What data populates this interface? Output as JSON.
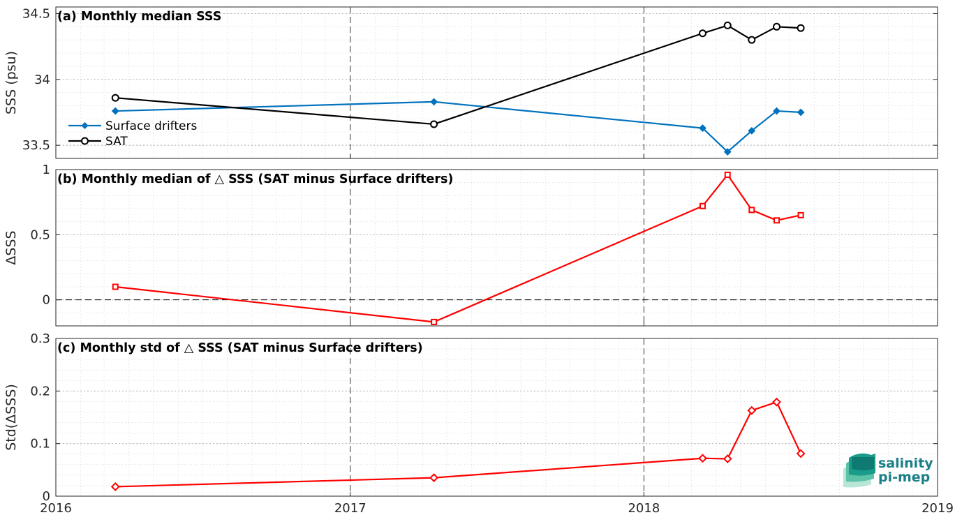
{
  "chart_data": [
    {
      "type": "line",
      "title": "(a) Monthly median SSS",
      "ylabel": "SSS (psu)",
      "ylim": [
        33.4,
        34.55
      ],
      "yticks": [
        "33.5",
        "34",
        "34.5"
      ],
      "ytick_values": [
        33.5,
        34,
        34.5
      ],
      "xlim": [
        "2016-01-01",
        "2019-01-01"
      ],
      "grid": true,
      "legend_position": "middle-left",
      "series": [
        {
          "name": "Surface drifters",
          "color": "#0072BD",
          "marker": "diamond",
          "x": [
            "2016-03-15",
            "2017-04-15",
            "2018-03-15",
            "2018-04-15",
            "2018-05-15",
            "2018-06-15",
            "2018-07-15"
          ],
          "values": [
            33.76,
            33.83,
            33.63,
            33.45,
            33.61,
            33.76,
            33.75
          ]
        },
        {
          "name": "SAT",
          "color": "#000000",
          "marker": "circle",
          "x": [
            "2016-03-15",
            "2017-04-15",
            "2018-03-15",
            "2018-04-15",
            "2018-05-15",
            "2018-06-15",
            "2018-07-15"
          ],
          "values": [
            33.86,
            33.66,
            34.35,
            34.41,
            34.3,
            34.4,
            34.39
          ]
        }
      ]
    },
    {
      "type": "line",
      "title": "(b) Monthly median of △ SSS (SAT minus Surface drifters)",
      "ylabel": "ΔSSS",
      "ylim": [
        -0.2,
        1.0
      ],
      "yticks": [
        "0",
        "0.5",
        "1"
      ],
      "ytick_values": [
        0,
        0.5,
        1
      ],
      "xlim": [
        "2016-01-01",
        "2019-01-01"
      ],
      "grid": true,
      "zero_line": true,
      "series": [
        {
          "color": "#FF0000",
          "marker": "square",
          "x": [
            "2016-03-15",
            "2017-04-15",
            "2018-03-15",
            "2018-04-15",
            "2018-05-15",
            "2018-06-15",
            "2018-07-15"
          ],
          "values": [
            0.1,
            -0.17,
            0.72,
            0.96,
            0.69,
            0.61,
            0.65
          ]
        }
      ]
    },
    {
      "type": "line",
      "title": "(c) Monthly std of △ SSS (SAT minus Surface drifters)",
      "ylabel": "Std(ΔSSS)",
      "ylim": [
        0,
        0.3
      ],
      "yticks": [
        "0",
        "0.1",
        "0.2",
        "0.3"
      ],
      "ytick_values": [
        0,
        0.1,
        0.2,
        0.3
      ],
      "xlim": [
        "2016-01-01",
        "2019-01-01"
      ],
      "xticks": [
        "2016",
        "2017",
        "2018",
        "2019"
      ],
      "grid": true,
      "series": [
        {
          "color": "#FF0000",
          "marker": "diamond",
          "x": [
            "2016-03-15",
            "2017-04-15",
            "2018-03-15",
            "2018-04-15",
            "2018-05-15",
            "2018-06-15",
            "2018-07-15"
          ],
          "values": [
            0.018,
            0.035,
            0.072,
            0.071,
            0.163,
            0.179,
            0.081
          ]
        }
      ]
    }
  ],
  "logo": {
    "line1": "salinity",
    "line2": "pi-mep",
    "color": "#1a7f86"
  }
}
